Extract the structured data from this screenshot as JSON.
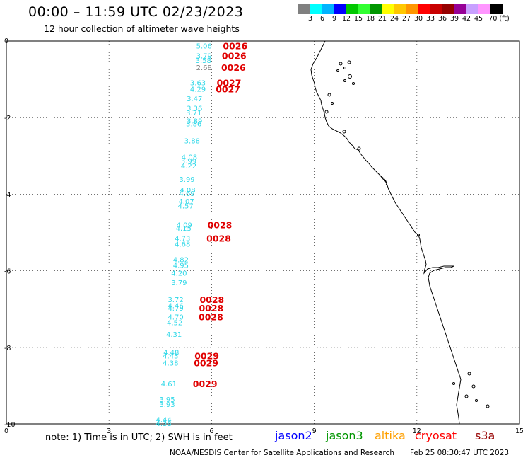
{
  "header": {
    "title": "00:00 – 11:59 UTC 02/23/2023",
    "subtitle": "12 hour collection of altimeter wave heights"
  },
  "colorbar": {
    "colors": [
      "#808080",
      "#00ffff",
      "#00b4ff",
      "#0000ff",
      "#00c800",
      "#32ff32",
      "#009600",
      "#ffff00",
      "#ffc800",
      "#ff9600",
      "#ff0000",
      "#c80000",
      "#960000",
      "#960096",
      "#c8a0ff",
      "#ff96ff",
      "#000000"
    ],
    "labels": [
      "3",
      "6",
      "9",
      "12",
      "15",
      "18",
      "21",
      "24",
      "27",
      "30",
      "33",
      "36",
      "39",
      "42",
      "45",
      "70 (ft)"
    ]
  },
  "axes": {
    "x_ticks": [
      "0",
      "3",
      "6",
      "9",
      "12",
      "15"
    ],
    "y_ticks": [
      "0",
      "-2",
      "-4",
      "-6",
      "-8",
      "-10"
    ],
    "x_range": [
      0,
      15
    ],
    "y_range": [
      -10,
      0
    ]
  },
  "wave_heights": [
    {
      "v": "5.06",
      "x": 5.78,
      "y": -0.12,
      "color": "#30d8e8"
    },
    {
      "v": "3.79",
      "x": 5.78,
      "y": -0.38,
      "color": "#30d8e8"
    },
    {
      "v": "3.58",
      "x": 5.76,
      "y": -0.5,
      "color": "#30d8e8"
    },
    {
      "v": "2.68",
      "x": 5.78,
      "y": -0.68,
      "color": "#808080"
    },
    {
      "v": "3.63",
      "x": 5.6,
      "y": -1.08,
      "color": "#30d8e8"
    },
    {
      "v": "4.29",
      "x": 5.6,
      "y": -1.25,
      "color": "#30d8e8"
    },
    {
      "v": "3.47",
      "x": 5.5,
      "y": -1.5,
      "color": "#30d8e8"
    },
    {
      "v": "3.36",
      "x": 5.5,
      "y": -1.75,
      "color": "#30d8e8"
    },
    {
      "v": "3.71",
      "x": 5.48,
      "y": -1.87,
      "color": "#30d8e8"
    },
    {
      "v": "3.89",
      "x": 5.5,
      "y": -2.08,
      "color": "#30d8e8"
    },
    {
      "v": "3.86",
      "x": 5.48,
      "y": -2.15,
      "color": "#30d8e8"
    },
    {
      "v": "3.88",
      "x": 5.43,
      "y": -2.6,
      "color": "#30d8e8"
    },
    {
      "v": "4.08",
      "x": 5.35,
      "y": -3.02,
      "color": "#30d8e8"
    },
    {
      "v": "3.99",
      "x": 5.33,
      "y": -3.12,
      "color": "#30d8e8"
    },
    {
      "v": "4.22",
      "x": 5.33,
      "y": -3.25,
      "color": "#30d8e8"
    },
    {
      "v": "3.99",
      "x": 5.28,
      "y": -3.6,
      "color": "#30d8e8"
    },
    {
      "v": "4.08",
      "x": 5.3,
      "y": -3.88,
      "color": "#30d8e8"
    },
    {
      "v": "4.69",
      "x": 5.28,
      "y": -3.97,
      "color": "#30d8e8"
    },
    {
      "v": "4.07",
      "x": 5.26,
      "y": -4.18,
      "color": "#30d8e8"
    },
    {
      "v": "4.57",
      "x": 5.24,
      "y": -4.3,
      "color": "#30d8e8"
    },
    {
      "v": "4.09",
      "x": 5.2,
      "y": -4.8,
      "color": "#30d8e8"
    },
    {
      "v": "4.15",
      "x": 5.18,
      "y": -4.88,
      "color": "#30d8e8"
    },
    {
      "v": "4.73",
      "x": 5.15,
      "y": -5.15,
      "color": "#30d8e8"
    },
    {
      "v": "4.68",
      "x": 5.15,
      "y": -5.3,
      "color": "#30d8e8"
    },
    {
      "v": "4.82",
      "x": 5.1,
      "y": -5.7,
      "color": "#30d8e8"
    },
    {
      "v": "4.95",
      "x": 5.1,
      "y": -5.85,
      "color": "#30d8e8"
    },
    {
      "v": "4.20",
      "x": 5.05,
      "y": -6.05,
      "color": "#30d8e8"
    },
    {
      "v": "3.79",
      "x": 5.05,
      "y": -6.3,
      "color": "#30d8e8"
    },
    {
      "v": "3.72",
      "x": 4.95,
      "y": -6.75,
      "color": "#30d8e8"
    },
    {
      "v": "4.46",
      "x": 4.95,
      "y": -6.9,
      "color": "#30d8e8"
    },
    {
      "v": "4.79",
      "x": 4.95,
      "y": -6.97,
      "color": "#30d8e8"
    },
    {
      "v": "4.70",
      "x": 4.95,
      "y": -7.2,
      "color": "#30d8e8"
    },
    {
      "v": "4.52",
      "x": 4.92,
      "y": -7.35,
      "color": "#30d8e8"
    },
    {
      "v": "4.31",
      "x": 4.9,
      "y": -7.65,
      "color": "#30d8e8"
    },
    {
      "v": "4.48",
      "x": 4.82,
      "y": -8.12,
      "color": "#30d8e8"
    },
    {
      "v": "4.43",
      "x": 4.8,
      "y": -8.22,
      "color": "#30d8e8"
    },
    {
      "v": "4.38",
      "x": 4.8,
      "y": -8.4,
      "color": "#30d8e8"
    },
    {
      "v": "4.61",
      "x": 4.75,
      "y": -8.95,
      "color": "#30d8e8"
    },
    {
      "v": "3.95",
      "x": 4.7,
      "y": -9.35,
      "color": "#30d8e8"
    },
    {
      "v": "3.93",
      "x": 4.7,
      "y": -9.48,
      "color": "#30d8e8"
    },
    {
      "v": "4.44",
      "x": 4.6,
      "y": -9.88,
      "color": "#30d8e8"
    },
    {
      "v": "4.38",
      "x": 4.6,
      "y": -9.98,
      "color": "#30d8e8"
    }
  ],
  "pass_labels": [
    {
      "v": "0026",
      "x": 6.33,
      "y": -0.12
    },
    {
      "v": "0026",
      "x": 6.3,
      "y": -0.38
    },
    {
      "v": "0026",
      "x": 6.28,
      "y": -0.68
    },
    {
      "v": "0027",
      "x": 6.15,
      "y": -1.08
    },
    {
      "v": "0027",
      "x": 6.12,
      "y": -1.25
    },
    {
      "v": "0028",
      "x": 5.88,
      "y": -4.8
    },
    {
      "v": "0028",
      "x": 5.85,
      "y": -5.15
    },
    {
      "v": "0028",
      "x": 5.65,
      "y": -6.75
    },
    {
      "v": "0028",
      "x": 5.63,
      "y": -6.97
    },
    {
      "v": "0028",
      "x": 5.62,
      "y": -7.2
    },
    {
      "v": "0029",
      "x": 5.5,
      "y": -8.22
    },
    {
      "v": "0029",
      "x": 5.48,
      "y": -8.4
    },
    {
      "v": "0029",
      "x": 5.45,
      "y": -8.95
    }
  ],
  "note": "note: 1) Time is in UTC; 2) SWH is in feet",
  "legend": [
    {
      "name": "jason2",
      "color": "#0000ff"
    },
    {
      "name": "jason3",
      "color": "#009600"
    },
    {
      "name": "altika",
      "color": "#ffa000"
    },
    {
      "name": "cryosat",
      "color": "#ff0000"
    },
    {
      "name": "s3a",
      "color": "#960000"
    }
  ],
  "footer": {
    "credit": "NOAA/NESDIS Center for Satellite Applications and Research",
    "timestamp": "Feb 25 08:30:47 UTC 2023"
  }
}
